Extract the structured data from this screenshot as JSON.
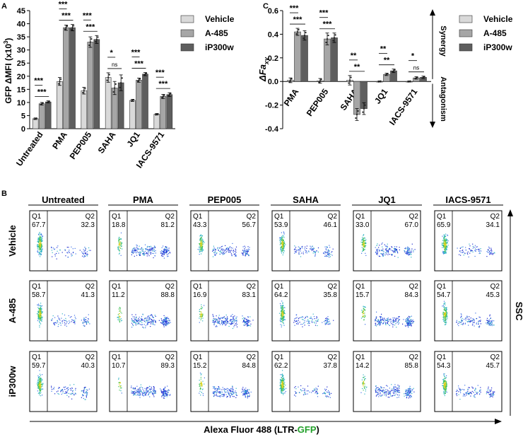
{
  "panel_letters": {
    "a": "A",
    "b": "B",
    "c": "C"
  },
  "chart_data": [
    {
      "type": "bar",
      "panel": "A",
      "title": "",
      "ylabel_prefix": "GFP ",
      "ylabel_main": "ΔMFI (x10",
      "ylabel_sup": "3",
      "ylabel_suffix": ")",
      "xlabel": "",
      "ylim": [
        0,
        45
      ],
      "yticks": [
        0,
        5,
        10,
        15,
        20,
        25,
        30,
        35,
        40,
        45
      ],
      "categories": [
        "Untreated",
        "PMA",
        "PEP005",
        "SAHA",
        "JQ1",
        "IACS-9571"
      ],
      "series": [
        {
          "name": "Vehicle",
          "color": "#d9d9d9",
          "values": [
            3.8,
            18.0,
            14.5,
            19.5,
            10.8,
            5.5
          ],
          "errors": [
            0.3,
            1.5,
            1.3,
            1.8,
            0.4,
            0.3
          ]
        },
        {
          "name": "A-485",
          "color": "#a6a6a6",
          "values": [
            9.5,
            38.5,
            33.0,
            15.5,
            18.5,
            12.3
          ],
          "errors": [
            0.5,
            1.0,
            2.0,
            2.5,
            0.8,
            0.8
          ]
        },
        {
          "name": "iP300w",
          "color": "#5e5e5e",
          "values": [
            10.2,
            38.5,
            34.0,
            17.5,
            20.8,
            13.0
          ],
          "errors": [
            0.4,
            1.2,
            1.5,
            3.0,
            0.6,
            0.7
          ]
        }
      ],
      "legend_position": "top-right",
      "significance": [
        {
          "category": "Untreated",
          "pair": "vehicle-iP300w",
          "label": "***"
        },
        {
          "category": "Untreated",
          "pair": "vehicle-A-485",
          "label": "***"
        },
        {
          "category": "PMA",
          "pair": "vehicle-iP300w",
          "label": "***"
        },
        {
          "category": "PMA",
          "pair": "vehicle-A-485",
          "label": "***"
        },
        {
          "category": "PEP005",
          "pair": "vehicle-iP300w",
          "label": "***"
        },
        {
          "category": "PEP005",
          "pair": "vehicle-A-485",
          "label": "***"
        },
        {
          "category": "SAHA",
          "pair": "vehicle-iP300w",
          "label": "ns"
        },
        {
          "category": "SAHA",
          "pair": "vehicle-A-485",
          "label": "*"
        },
        {
          "category": "JQ1",
          "pair": "vehicle-iP300w",
          "label": "***"
        },
        {
          "category": "JQ1",
          "pair": "vehicle-A-485",
          "label": "***"
        },
        {
          "category": "IACS-9571",
          "pair": "vehicle-iP300w",
          "label": "***"
        },
        {
          "category": "IACS-9571",
          "pair": "vehicle-A-485",
          "label": "***"
        }
      ]
    },
    {
      "type": "bar",
      "panel": "C",
      "title": "",
      "ylabel_main": "ΔFa",
      "ylabel_sub": "xy",
      "xlabel": "",
      "ylim": [
        -0.4,
        0.6
      ],
      "yticks": [
        -0.4,
        -0.2,
        0.0,
        0.2,
        0.4,
        0.6
      ],
      "ytick_labels": [
        "-0.4",
        "-0.2",
        "0.0",
        "0.2",
        "0.4",
        "0.6"
      ],
      "categories": [
        "PMA",
        "PEP005",
        "SAHA",
        "JQ1",
        "IACS-9571"
      ],
      "series": [
        {
          "name": "Vehicle",
          "color": "#d9d9d9",
          "values": [
            0.01,
            0.005,
            0.01,
            0.0,
            0.0
          ],
          "errors": [
            0.02,
            0.02,
            0.04,
            0.005,
            0.005
          ]
        },
        {
          "name": "A-485",
          "color": "#a6a6a6",
          "values": [
            0.42,
            0.36,
            -0.28,
            0.06,
            0.03
          ],
          "errors": [
            0.03,
            0.05,
            0.05,
            0.01,
            0.01
          ]
        },
        {
          "name": "iP300w",
          "color": "#5e5e5e",
          "values": [
            0.39,
            0.37,
            -0.23,
            0.09,
            0.035
          ],
          "errors": [
            0.04,
            0.04,
            0.05,
            0.015,
            0.01
          ]
        }
      ],
      "legend_position": "top-right",
      "synergy_label": "Synergy",
      "antagonism_label": "Antagonism",
      "significance": [
        {
          "category": "PMA",
          "pair": "vehicle-iP300w",
          "label": "***"
        },
        {
          "category": "PMA",
          "pair": "vehicle-A-485",
          "label": "***"
        },
        {
          "category": "PEP005",
          "pair": "vehicle-iP300w",
          "label": "***"
        },
        {
          "category": "PEP005",
          "pair": "vehicle-A-485",
          "label": "***"
        },
        {
          "category": "SAHA",
          "pair": "vehicle-iP300w",
          "label": "**"
        },
        {
          "category": "SAHA",
          "pair": "vehicle-A-485",
          "label": "**"
        },
        {
          "category": "JQ1",
          "pair": "vehicle-iP300w",
          "label": "**"
        },
        {
          "category": "JQ1",
          "pair": "vehicle-A-485",
          "label": "**"
        },
        {
          "category": "IACS-9571",
          "pair": "vehicle-iP300w",
          "label": "ns"
        },
        {
          "category": "IACS-9571",
          "pair": "vehicle-A-485",
          "label": "*"
        }
      ]
    },
    {
      "type": "scatter",
      "panel": "B",
      "title": "",
      "column_labels": [
        "Untreated",
        "PMA",
        "PEP005",
        "SAHA",
        "JQ1",
        "IACS-9571"
      ],
      "row_labels": [
        "Vehicle",
        "A-485",
        "iP300w"
      ],
      "xlabel_prefix": "Alexa Fluor 488 (LTR-",
      "xlabel_highlight": "GFP",
      "xlabel_suffix": ")",
      "xlabel_highlight_color": "#22a02a",
      "ylabel": "SSC",
      "gate_labels": [
        "Q1",
        "Q2"
      ],
      "q1_values": [
        [
          "67.7",
          "18.8",
          "43.3",
          "53.9",
          "33.0",
          "65.9"
        ],
        [
          "58.7",
          "11.2",
          "16.9",
          "64.2",
          "15.7",
          "54.7"
        ],
        [
          "59.7",
          "10.7",
          "15.2",
          "62.2",
          "14.2",
          "54.3"
        ]
      ],
      "q2_values": [
        [
          "32.3",
          "81.2",
          "56.7",
          "46.1",
          "67.0",
          "34.1"
        ],
        [
          "41.3",
          "88.8",
          "83.1",
          "35.8",
          "84.3",
          "45.3"
        ],
        [
          "40.3",
          "89.3",
          "84.8",
          "37.8",
          "85.8",
          "45.7"
        ]
      ]
    }
  ]
}
